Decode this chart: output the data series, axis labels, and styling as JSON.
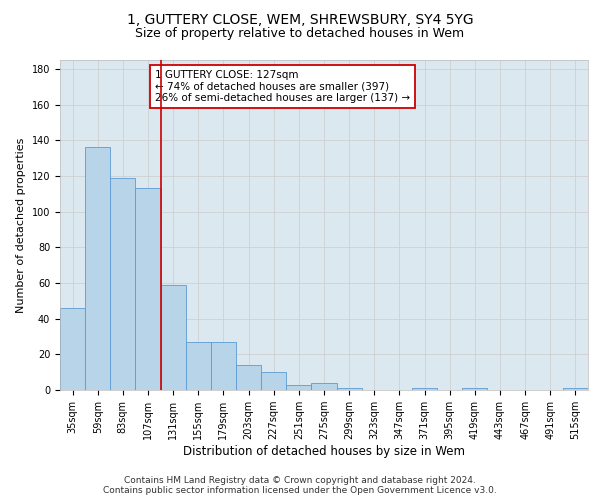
{
  "title1": "1, GUTTERY CLOSE, WEM, SHREWSBURY, SY4 5YG",
  "title2": "Size of property relative to detached houses in Wem",
  "xlabel": "Distribution of detached houses by size in Wem",
  "ylabel": "Number of detached properties",
  "categories": [
    "35sqm",
    "59sqm",
    "83sqm",
    "107sqm",
    "131sqm",
    "155sqm",
    "179sqm",
    "203sqm",
    "227sqm",
    "251sqm",
    "275sqm",
    "299sqm",
    "323sqm",
    "347sqm",
    "371sqm",
    "395sqm",
    "419sqm",
    "443sqm",
    "467sqm",
    "491sqm",
    "515sqm"
  ],
  "values": [
    46,
    136,
    119,
    113,
    59,
    27,
    27,
    14,
    10,
    3,
    4,
    1,
    0,
    0,
    1,
    0,
    1,
    0,
    0,
    0,
    1
  ],
  "bar_color": "#b8d4e8",
  "bar_edge_color": "#5b9bd5",
  "bar_width": 1.0,
  "vline_index": 3.5,
  "vline_color": "#cc0000",
  "annotation_text": "1 GUTTERY CLOSE: 127sqm\n← 74% of detached houses are smaller (397)\n26% of semi-detached houses are larger (137) →",
  "annotation_box_color": "#cc0000",
  "ylim": [
    0,
    185
  ],
  "yticks": [
    0,
    20,
    40,
    60,
    80,
    100,
    120,
    140,
    160,
    180
  ],
  "grid_color": "#cccccc",
  "bg_color": "#dce8f0",
  "footnote": "Contains HM Land Registry data © Crown copyright and database right 2024.\nContains public sector information licensed under the Open Government Licence v3.0.",
  "title1_fontsize": 10,
  "title2_fontsize": 9,
  "xlabel_fontsize": 8.5,
  "ylabel_fontsize": 8,
  "tick_fontsize": 7,
  "annotation_fontsize": 7.5,
  "footnote_fontsize": 6.5
}
